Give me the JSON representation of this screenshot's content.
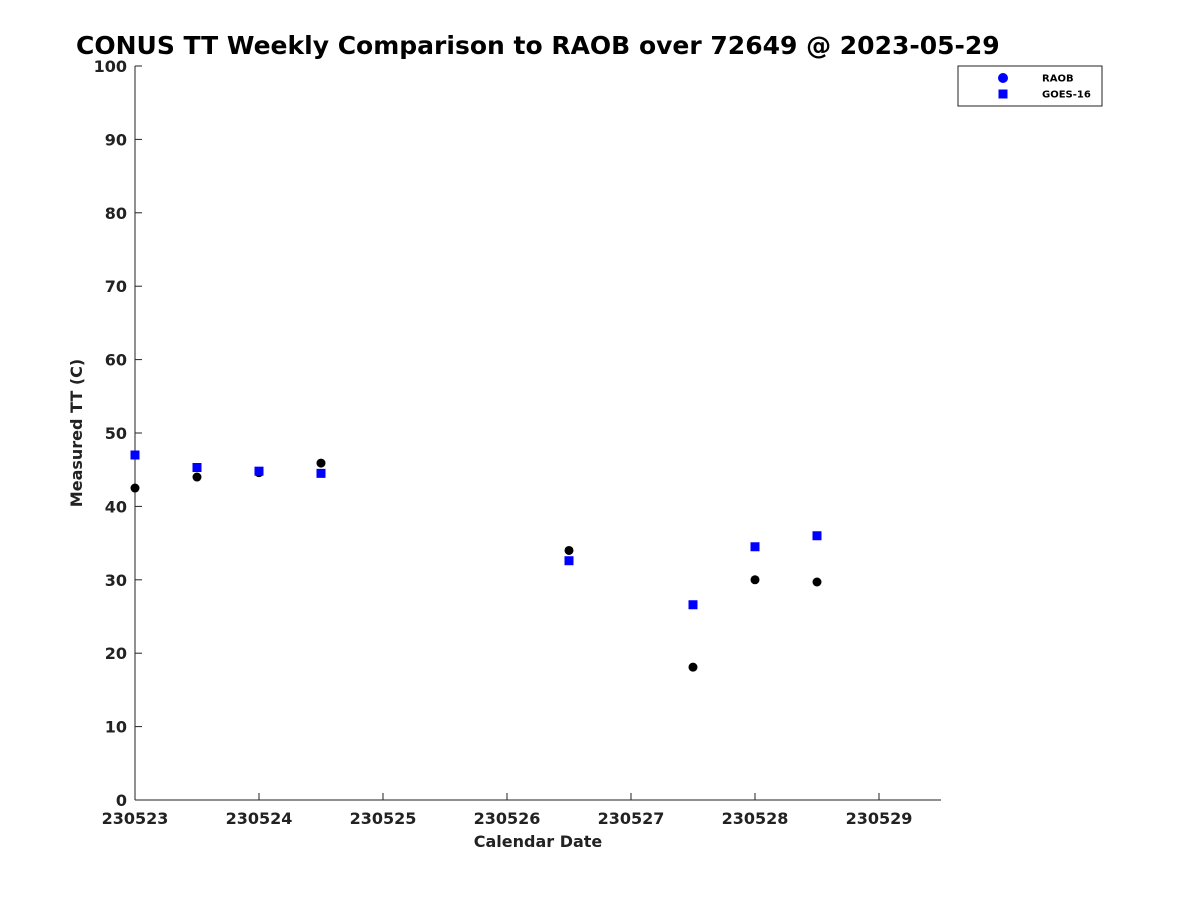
{
  "chart_data": {
    "type": "scatter",
    "title": "CONUS TT Weekly Comparison to RAOB over 72649 @ 2023-05-29",
    "xlabel": "Calendar Date",
    "ylabel": "Measured TT (C)",
    "xlim": [
      "2023-05-23",
      "2023-05-29 12:00"
    ],
    "ylim": [
      0,
      100
    ],
    "x_ticks": [
      {
        "x": "2023-05-23",
        "label": "230523"
      },
      {
        "x": "2023-05-24",
        "label": "230524"
      },
      {
        "x": "2023-05-25",
        "label": "230525"
      },
      {
        "x": "2023-05-26",
        "label": "230526"
      },
      {
        "x": "2023-05-27",
        "label": "230527"
      },
      {
        "x": "2023-05-28",
        "label": "230528"
      },
      {
        "x": "2023-05-29",
        "label": "230529"
      }
    ],
    "y_ticks": [
      0,
      10,
      20,
      30,
      40,
      50,
      60,
      70,
      80,
      90,
      100
    ],
    "grid": false,
    "legend_position": "top-right",
    "series": [
      {
        "name": "RAOB",
        "marker": "circle",
        "color": "#000000",
        "legend_color": "#0000ff",
        "points": [
          {
            "x": "2023-05-23 00:00",
            "y": 42.5
          },
          {
            "x": "2023-05-23 12:00",
            "y": 44.0
          },
          {
            "x": "2023-05-24 00:00",
            "y": 44.6
          },
          {
            "x": "2023-05-24 12:00",
            "y": 45.9
          },
          {
            "x": "2023-05-26 12:00",
            "y": 34.0
          },
          {
            "x": "2023-05-27 12:00",
            "y": 18.1
          },
          {
            "x": "2023-05-28 00:00",
            "y": 30.0
          },
          {
            "x": "2023-05-28 12:00",
            "y": 29.7
          }
        ]
      },
      {
        "name": "GOES-16",
        "marker": "square",
        "color": "#0000ff",
        "legend_color": "#0000ff",
        "points": [
          {
            "x": "2023-05-23 00:00",
            "y": 47.0
          },
          {
            "x": "2023-05-23 12:00",
            "y": 45.3
          },
          {
            "x": "2023-05-24 00:00",
            "y": 44.8
          },
          {
            "x": "2023-05-24 12:00",
            "y": 44.5
          },
          {
            "x": "2023-05-26 12:00",
            "y": 32.6
          },
          {
            "x": "2023-05-27 12:00",
            "y": 26.6
          },
          {
            "x": "2023-05-28 00:00",
            "y": 34.5
          },
          {
            "x": "2023-05-28 12:00",
            "y": 36.0
          }
        ]
      }
    ]
  }
}
